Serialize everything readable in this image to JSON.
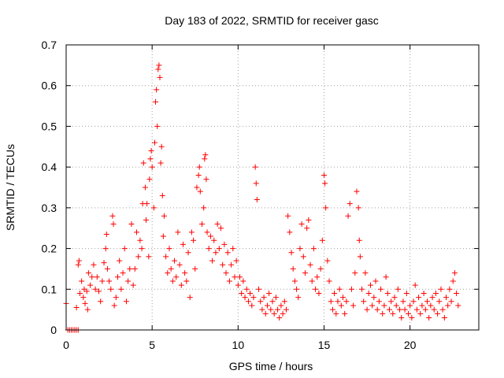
{
  "chart_data": {
    "type": "scatter",
    "title": "Day 183 of 2022, SRMTID for receiver gasc",
    "xlabel": "GPS time / hours",
    "ylabel": "SRMTID / TECUs",
    "xlim": [
      0,
      24
    ],
    "ylim": [
      0,
      0.7
    ],
    "x_ticks": [
      0,
      5,
      10,
      15,
      20
    ],
    "y_ticks": [
      0,
      0.1,
      0.2,
      0.3,
      0.4,
      0.5,
      0.6,
      0.7
    ],
    "grid": true,
    "marker": "+",
    "color": "#ff0000",
    "series": [
      {
        "name": "SRMTID",
        "points": [
          [
            0.0,
            0.065
          ],
          [
            0.1,
            0.0
          ],
          [
            0.2,
            0.0
          ],
          [
            0.3,
            0.0
          ],
          [
            0.4,
            0.0
          ],
          [
            0.5,
            0.0
          ],
          [
            0.6,
            0.0
          ],
          [
            0.7,
            0.0
          ],
          [
            0.6,
            0.055
          ],
          [
            0.7,
            0.16
          ],
          [
            0.75,
            0.17
          ],
          [
            0.8,
            0.09
          ],
          [
            0.9,
            0.12
          ],
          [
            1.0,
            0.08
          ],
          [
            1.05,
            0.1
          ],
          [
            1.1,
            0.065
          ],
          [
            1.2,
            0.095
          ],
          [
            1.25,
            0.05
          ],
          [
            1.3,
            0.14
          ],
          [
            1.4,
            0.11
          ],
          [
            1.5,
            0.13
          ],
          [
            1.6,
            0.16
          ],
          [
            1.7,
            0.1
          ],
          [
            1.8,
            0.13
          ],
          [
            1.9,
            0.095
          ],
          [
            2.0,
            0.07
          ],
          [
            2.1,
            0.12
          ],
          [
            2.2,
            0.165
          ],
          [
            2.3,
            0.2
          ],
          [
            2.35,
            0.235
          ],
          [
            2.4,
            0.15
          ],
          [
            2.5,
            0.12
          ],
          [
            2.6,
            0.1
          ],
          [
            2.7,
            0.28
          ],
          [
            2.75,
            0.26
          ],
          [
            2.8,
            0.06
          ],
          [
            2.9,
            0.08
          ],
          [
            3.0,
            0.13
          ],
          [
            3.1,
            0.17
          ],
          [
            3.2,
            0.1
          ],
          [
            3.3,
            0.14
          ],
          [
            3.4,
            0.2
          ],
          [
            3.5,
            0.07
          ],
          [
            3.6,
            0.12
          ],
          [
            3.7,
            0.15
          ],
          [
            3.8,
            0.26
          ],
          [
            3.9,
            0.11
          ],
          [
            4.0,
            0.15
          ],
          [
            4.1,
            0.24
          ],
          [
            4.2,
            0.18
          ],
          [
            4.3,
            0.22
          ],
          [
            4.4,
            0.2
          ],
          [
            4.45,
            0.31
          ],
          [
            4.5,
            0.41
          ],
          [
            4.6,
            0.35
          ],
          [
            4.65,
            0.27
          ],
          [
            4.7,
            0.31
          ],
          [
            4.8,
            0.18
          ],
          [
            4.85,
            0.37
          ],
          [
            4.9,
            0.42
          ],
          [
            4.95,
            0.44
          ],
          [
            5.0,
            0.4
          ],
          [
            5.1,
            0.3
          ],
          [
            5.15,
            0.46
          ],
          [
            5.2,
            0.56
          ],
          [
            5.25,
            0.59
          ],
          [
            5.3,
            0.5
          ],
          [
            5.35,
            0.64
          ],
          [
            5.4,
            0.65
          ],
          [
            5.45,
            0.62
          ],
          [
            5.5,
            0.41
          ],
          [
            5.55,
            0.45
          ],
          [
            5.6,
            0.33
          ],
          [
            5.65,
            0.23
          ],
          [
            5.7,
            0.28
          ],
          [
            5.8,
            0.18
          ],
          [
            5.9,
            0.14
          ],
          [
            6.0,
            0.2
          ],
          [
            6.1,
            0.15
          ],
          [
            6.2,
            0.12
          ],
          [
            6.3,
            0.17
          ],
          [
            6.4,
            0.13
          ],
          [
            6.5,
            0.24
          ],
          [
            6.6,
            0.16
          ],
          [
            6.7,
            0.11
          ],
          [
            6.8,
            0.21
          ],
          [
            6.9,
            0.14
          ],
          [
            7.0,
            0.12
          ],
          [
            7.1,
            0.19
          ],
          [
            7.2,
            0.08
          ],
          [
            7.3,
            0.24
          ],
          [
            7.4,
            0.22
          ],
          [
            7.5,
            0.15
          ],
          [
            7.6,
            0.35
          ],
          [
            7.7,
            0.38
          ],
          [
            7.75,
            0.4
          ],
          [
            7.8,
            0.34
          ],
          [
            7.9,
            0.26
          ],
          [
            8.0,
            0.3
          ],
          [
            8.05,
            0.42
          ],
          [
            8.1,
            0.43
          ],
          [
            8.15,
            0.37
          ],
          [
            8.2,
            0.24
          ],
          [
            8.3,
            0.2
          ],
          [
            8.4,
            0.23
          ],
          [
            8.5,
            0.17
          ],
          [
            8.6,
            0.22
          ],
          [
            8.7,
            0.19
          ],
          [
            8.8,
            0.26
          ],
          [
            8.9,
            0.2
          ],
          [
            9.0,
            0.25
          ],
          [
            9.1,
            0.16
          ],
          [
            9.2,
            0.21
          ],
          [
            9.3,
            0.14
          ],
          [
            9.4,
            0.19
          ],
          [
            9.5,
            0.12
          ],
          [
            9.6,
            0.16
          ],
          [
            9.7,
            0.2
          ],
          [
            9.8,
            0.13
          ],
          [
            9.9,
            0.17
          ],
          [
            10.0,
            0.11
          ],
          [
            10.1,
            0.13
          ],
          [
            10.2,
            0.09
          ],
          [
            10.3,
            0.12
          ],
          [
            10.4,
            0.08
          ],
          [
            10.5,
            0.1
          ],
          [
            10.6,
            0.07
          ],
          [
            10.7,
            0.09
          ],
          [
            10.8,
            0.06
          ],
          [
            10.9,
            0.08
          ],
          [
            11.0,
            0.4
          ],
          [
            11.05,
            0.36
          ],
          [
            11.1,
            0.32
          ],
          [
            11.2,
            0.1
          ],
          [
            11.3,
            0.07
          ],
          [
            11.4,
            0.05
          ],
          [
            11.5,
            0.08
          ],
          [
            11.6,
            0.04
          ],
          [
            11.7,
            0.06
          ],
          [
            11.8,
            0.09
          ],
          [
            11.9,
            0.05
          ],
          [
            12.0,
            0.07
          ],
          [
            12.1,
            0.04
          ],
          [
            12.2,
            0.08
          ],
          [
            12.3,
            0.05
          ],
          [
            12.4,
            0.03
          ],
          [
            12.5,
            0.06
          ],
          [
            12.6,
            0.04
          ],
          [
            12.7,
            0.07
          ],
          [
            12.8,
            0.05
          ],
          [
            12.9,
            0.28
          ],
          [
            13.0,
            0.24
          ],
          [
            13.1,
            0.19
          ],
          [
            13.2,
            0.15
          ],
          [
            13.3,
            0.12
          ],
          [
            13.4,
            0.1
          ],
          [
            13.5,
            0.08
          ],
          [
            13.6,
            0.2
          ],
          [
            13.7,
            0.26
          ],
          [
            13.8,
            0.18
          ],
          [
            13.9,
            0.14
          ],
          [
            14.0,
            0.25
          ],
          [
            14.1,
            0.27
          ],
          [
            14.2,
            0.16
          ],
          [
            14.3,
            0.12
          ],
          [
            14.4,
            0.2
          ],
          [
            14.5,
            0.1
          ],
          [
            14.6,
            0.13
          ],
          [
            14.7,
            0.09
          ],
          [
            14.8,
            0.15
          ],
          [
            14.9,
            0.22
          ],
          [
            15.0,
            0.38
          ],
          [
            15.05,
            0.36
          ],
          [
            15.1,
            0.3
          ],
          [
            15.2,
            0.17
          ],
          [
            15.3,
            0.12
          ],
          [
            15.4,
            0.07
          ],
          [
            15.5,
            0.05
          ],
          [
            15.6,
            0.09
          ],
          [
            15.7,
            0.04
          ],
          [
            15.8,
            0.07
          ],
          [
            15.9,
            0.1
          ],
          [
            16.0,
            0.06
          ],
          [
            16.1,
            0.08
          ],
          [
            16.2,
            0.04
          ],
          [
            16.3,
            0.07
          ],
          [
            16.4,
            0.28
          ],
          [
            16.5,
            0.31
          ],
          [
            16.6,
            0.1
          ],
          [
            16.7,
            0.06
          ],
          [
            16.8,
            0.14
          ],
          [
            16.9,
            0.34
          ],
          [
            17.0,
            0.3
          ],
          [
            17.05,
            0.22
          ],
          [
            17.1,
            0.18
          ],
          [
            17.2,
            0.1
          ],
          [
            17.3,
            0.07
          ],
          [
            17.4,
            0.14
          ],
          [
            17.5,
            0.05
          ],
          [
            17.6,
            0.09
          ],
          [
            17.7,
            0.11
          ],
          [
            17.8,
            0.06
          ],
          [
            17.9,
            0.08
          ],
          [
            18.0,
            0.12
          ],
          [
            18.1,
            0.05
          ],
          [
            18.2,
            0.07
          ],
          [
            18.3,
            0.1
          ],
          [
            18.4,
            0.04
          ],
          [
            18.5,
            0.06
          ],
          [
            18.6,
            0.13
          ],
          [
            18.7,
            0.09
          ],
          [
            18.8,
            0.05
          ],
          [
            18.9,
            0.07
          ],
          [
            19.0,
            0.04
          ],
          [
            19.1,
            0.08
          ],
          [
            19.2,
            0.06
          ],
          [
            19.3,
            0.1
          ],
          [
            19.4,
            0.05
          ],
          [
            19.5,
            0.03
          ],
          [
            19.6,
            0.07
          ],
          [
            19.7,
            0.05
          ],
          [
            19.8,
            0.09
          ],
          [
            19.9,
            0.04
          ],
          [
            20.0,
            0.06
          ],
          [
            20.1,
            0.03
          ],
          [
            20.2,
            0.07
          ],
          [
            20.3,
            0.11
          ],
          [
            20.4,
            0.05
          ],
          [
            20.5,
            0.08
          ],
          [
            20.6,
            0.04
          ],
          [
            20.7,
            0.06
          ],
          [
            20.8,
            0.09
          ],
          [
            20.9,
            0.05
          ],
          [
            21.0,
            0.07
          ],
          [
            21.1,
            0.03
          ],
          [
            21.2,
            0.06
          ],
          [
            21.3,
            0.08
          ],
          [
            21.4,
            0.05
          ],
          [
            21.5,
            0.09
          ],
          [
            21.6,
            0.04
          ],
          [
            21.7,
            0.07
          ],
          [
            21.8,
            0.1
          ],
          [
            21.9,
            0.05
          ],
          [
            22.0,
            0.03
          ],
          [
            22.1,
            0.08
          ],
          [
            22.2,
            0.06
          ],
          [
            22.3,
            0.1
          ],
          [
            22.4,
            0.07
          ],
          [
            22.5,
            0.12
          ],
          [
            22.6,
            0.14
          ],
          [
            22.7,
            0.09
          ],
          [
            22.8,
            0.06
          ]
        ]
      }
    ]
  }
}
